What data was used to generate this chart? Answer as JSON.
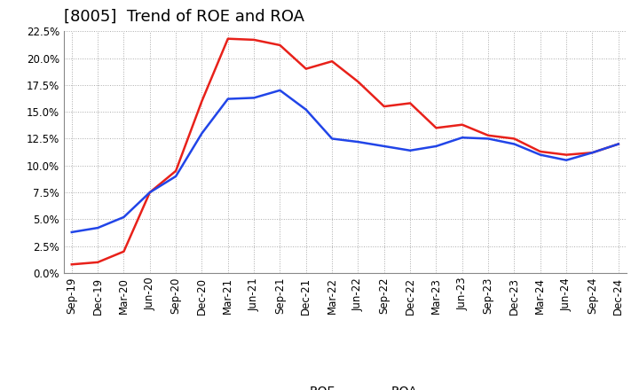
{
  "title": "[8005]  Trend of ROE and ROA",
  "labels": [
    "Sep-19",
    "Dec-19",
    "Mar-20",
    "Jun-20",
    "Sep-20",
    "Dec-20",
    "Mar-21",
    "Jun-21",
    "Sep-21",
    "Dec-21",
    "Mar-22",
    "Jun-22",
    "Sep-22",
    "Dec-22",
    "Mar-23",
    "Jun-23",
    "Sep-23",
    "Dec-23",
    "Mar-24",
    "Jun-24",
    "Sep-24",
    "Dec-24"
  ],
  "ROE": [
    0.008,
    0.01,
    0.02,
    0.075,
    0.095,
    0.16,
    0.218,
    0.217,
    0.212,
    0.19,
    0.197,
    0.178,
    0.155,
    0.158,
    0.135,
    0.138,
    0.128,
    0.125,
    0.113,
    0.11,
    0.112,
    0.12
  ],
  "ROA": [
    0.038,
    0.042,
    0.052,
    0.075,
    0.09,
    0.13,
    0.162,
    0.163,
    0.17,
    0.152,
    0.125,
    0.122,
    0.118,
    0.114,
    0.118,
    0.126,
    0.125,
    0.12,
    0.11,
    0.105,
    0.112,
    0.12
  ],
  "ROE_color": "#e8211a",
  "ROA_color": "#2145e8",
  "background_color": "#ffffff",
  "grid_color": "#aaaaaa",
  "ylim": [
    0.0,
    0.225
  ],
  "yticks": [
    0.0,
    0.025,
    0.05,
    0.075,
    0.1,
    0.125,
    0.15,
    0.175,
    0.2,
    0.225
  ],
  "title_fontsize": 13,
  "legend_fontsize": 10,
  "tick_fontsize": 8.5,
  "line_width": 1.8
}
